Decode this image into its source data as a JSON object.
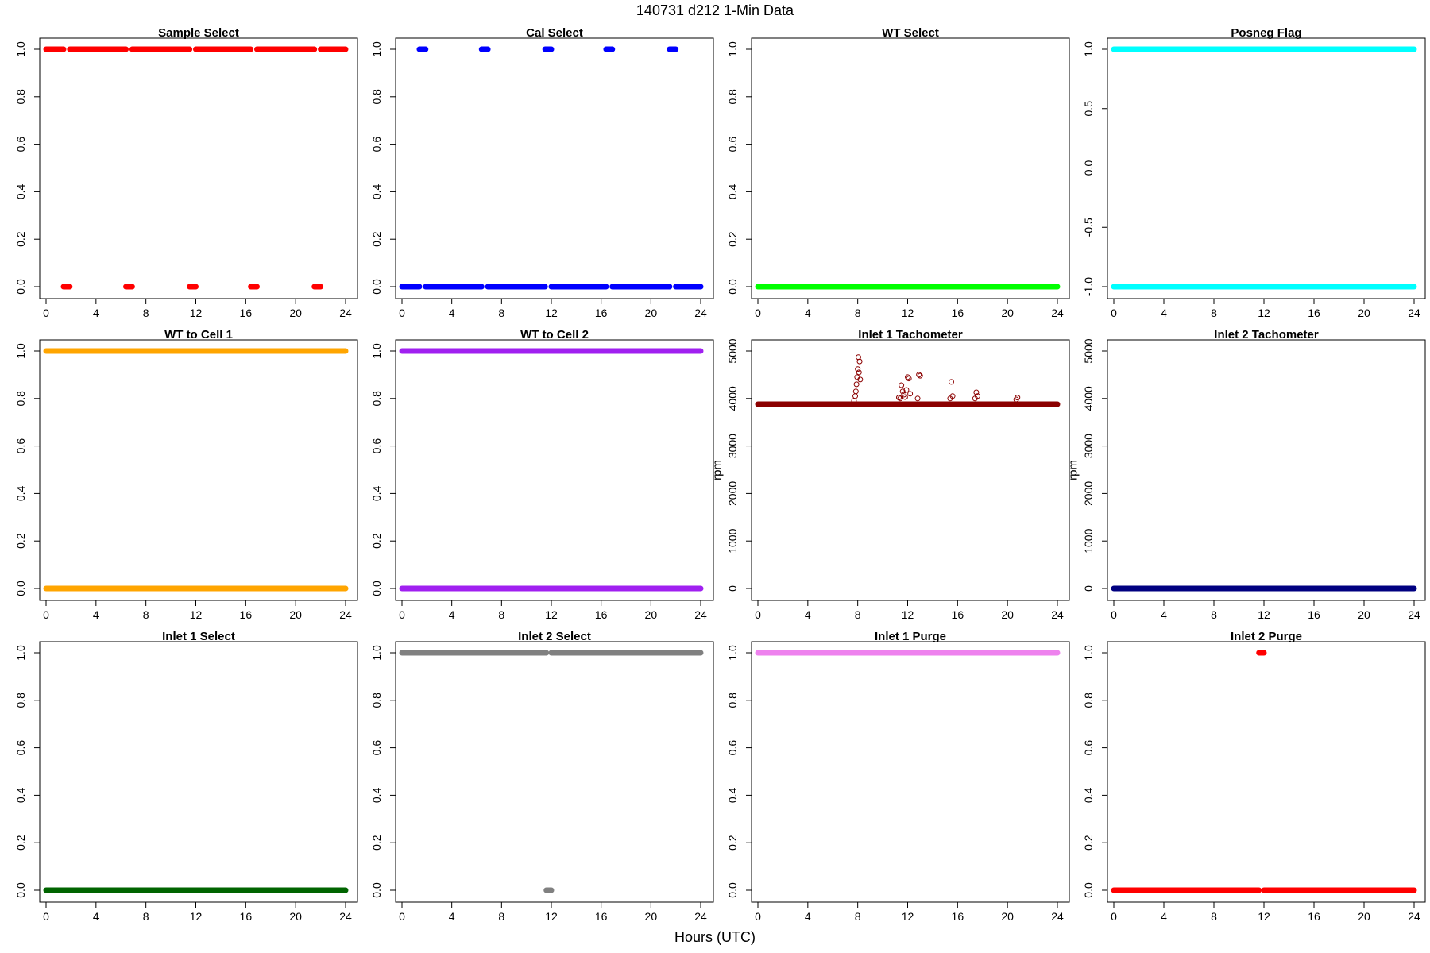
{
  "figure": {
    "title": "140731   d212   1-Min Data",
    "xlabel": "Hours (UTC)"
  },
  "chart_data": [
    {
      "type": "scatter",
      "title": "Sample Select",
      "color": "#FF0000",
      "xlim": [
        0,
        24
      ],
      "ylim": [
        0,
        1
      ],
      "xticks": [
        0,
        4,
        8,
        12,
        16,
        20,
        24
      ],
      "yticks": [
        0,
        0.2,
        0.4,
        0.6,
        0.8,
        1
      ],
      "ytick_labels": [
        "0.0",
        "0.2",
        "0.4",
        "0.6",
        "0.8",
        "1.0"
      ],
      "ylabel": "",
      "segments": [
        {
          "y": 1,
          "from": 0,
          "to": 1.4
        },
        {
          "y": 0,
          "from": 1.4,
          "to": 1.9
        },
        {
          "y": 1,
          "from": 1.9,
          "to": 6.4
        },
        {
          "y": 0,
          "from": 6.4,
          "to": 6.9
        },
        {
          "y": 1,
          "from": 6.9,
          "to": 11.5
        },
        {
          "y": 0,
          "from": 11.5,
          "to": 12.0
        },
        {
          "y": 1,
          "from": 12.0,
          "to": 16.4
        },
        {
          "y": 0,
          "from": 16.4,
          "to": 16.9
        },
        {
          "y": 1,
          "from": 16.9,
          "to": 21.5
        },
        {
          "y": 0,
          "from": 21.5,
          "to": 22.0
        },
        {
          "y": 1,
          "from": 22.0,
          "to": 24
        }
      ]
    },
    {
      "type": "scatter",
      "title": "Cal Select",
      "color": "#0000FF",
      "xlim": [
        0,
        24
      ],
      "ylim": [
        0,
        1
      ],
      "xticks": [
        0,
        4,
        8,
        12,
        16,
        20,
        24
      ],
      "yticks": [
        0,
        0.2,
        0.4,
        0.6,
        0.8,
        1
      ],
      "ytick_labels": [
        "0.0",
        "0.2",
        "0.4",
        "0.6",
        "0.8",
        "1.0"
      ],
      "ylabel": "",
      "segments": [
        {
          "y": 0,
          "from": 0,
          "to": 1.4
        },
        {
          "y": 1,
          "from": 1.4,
          "to": 1.9
        },
        {
          "y": 0,
          "from": 1.9,
          "to": 6.4
        },
        {
          "y": 1,
          "from": 6.4,
          "to": 6.9
        },
        {
          "y": 0,
          "from": 6.9,
          "to": 11.5
        },
        {
          "y": 1,
          "from": 11.5,
          "to": 12.0
        },
        {
          "y": 0,
          "from": 12.0,
          "to": 16.4
        },
        {
          "y": 1,
          "from": 16.4,
          "to": 16.9
        },
        {
          "y": 0,
          "from": 16.9,
          "to": 21.5
        },
        {
          "y": 1,
          "from": 21.5,
          "to": 22.0
        },
        {
          "y": 0,
          "from": 22.0,
          "to": 24
        }
      ]
    },
    {
      "type": "scatter",
      "title": "WT Select",
      "color": "#00FF00",
      "xlim": [
        0,
        24
      ],
      "ylim": [
        0,
        1
      ],
      "xticks": [
        0,
        4,
        8,
        12,
        16,
        20,
        24
      ],
      "yticks": [
        0,
        0.2,
        0.4,
        0.6,
        0.8,
        1
      ],
      "ytick_labels": [
        "0.0",
        "0.2",
        "0.4",
        "0.6",
        "0.8",
        "1.0"
      ],
      "ylabel": "",
      "segments": [
        {
          "y": 0,
          "from": 0,
          "to": 24
        }
      ]
    },
    {
      "type": "scatter",
      "title": "Posneg Flag",
      "color": "#00FFFF",
      "xlim": [
        0,
        24
      ],
      "ylim": [
        -1,
        1
      ],
      "xticks": [
        0,
        4,
        8,
        12,
        16,
        20,
        24
      ],
      "yticks": [
        -1,
        -0.5,
        0,
        0.5,
        1
      ],
      "ytick_labels": [
        "-1.0",
        "-0.5",
        "0.0",
        "0.5",
        "1.0"
      ],
      "ylabel": "",
      "segments": [
        {
          "y": 1,
          "from": 0,
          "to": 24
        },
        {
          "y": -1,
          "from": 0,
          "to": 24
        }
      ]
    },
    {
      "type": "scatter",
      "title": "WT to Cell 1",
      "color": "#FFA500",
      "xlim": [
        0,
        24
      ],
      "ylim": [
        0,
        1
      ],
      "xticks": [
        0,
        4,
        8,
        12,
        16,
        20,
        24
      ],
      "yticks": [
        0,
        0.2,
        0.4,
        0.6,
        0.8,
        1
      ],
      "ytick_labels": [
        "0.0",
        "0.2",
        "0.4",
        "0.6",
        "0.8",
        "1.0"
      ],
      "ylabel": "",
      "segments": [
        {
          "y": 1,
          "from": 0,
          "to": 24
        },
        {
          "y": 0,
          "from": 0,
          "to": 24
        }
      ]
    },
    {
      "type": "scatter",
      "title": "WT to Cell 2",
      "color": "#A020F0",
      "xlim": [
        0,
        24
      ],
      "ylim": [
        0,
        1
      ],
      "xticks": [
        0,
        4,
        8,
        12,
        16,
        20,
        24
      ],
      "yticks": [
        0,
        0.2,
        0.4,
        0.6,
        0.8,
        1
      ],
      "ytick_labels": [
        "0.0",
        "0.2",
        "0.4",
        "0.6",
        "0.8",
        "1.0"
      ],
      "ylabel": "",
      "segments": [
        {
          "y": 1,
          "from": 0,
          "to": 24
        },
        {
          "y": 0,
          "from": 0,
          "to": 24
        }
      ]
    },
    {
      "type": "scatter",
      "title": "Inlet 1 Tachometer",
      "color": "#8B0000",
      "xlim": [
        0,
        24
      ],
      "ylim": [
        0,
        5000
      ],
      "xticks": [
        0,
        4,
        8,
        12,
        16,
        20,
        24
      ],
      "yticks": [
        0,
        1000,
        2000,
        3000,
        4000,
        5000
      ],
      "ytick_labels": [
        "0",
        "1000",
        "2000",
        "3000",
        "4000",
        "5000"
      ],
      "ylabel": "rpm",
      "segments": [
        {
          "y": 3880,
          "from": 0,
          "to": 24
        }
      ],
      "points": [
        [
          7.7,
          3950
        ],
        [
          7.8,
          4050
        ],
        [
          7.9,
          4300
        ],
        [
          7.95,
          4450
        ],
        [
          8.0,
          4620
        ],
        [
          8.05,
          4870
        ],
        [
          8.1,
          4550
        ],
        [
          8.15,
          4780
        ],
        [
          7.85,
          4150
        ],
        [
          8.2,
          4400
        ],
        [
          11.4,
          4000
        ],
        [
          11.5,
          4280
        ],
        [
          11.6,
          4150
        ],
        [
          11.7,
          4080
        ],
        [
          11.8,
          4030
        ],
        [
          11.9,
          4180
        ],
        [
          12.0,
          4450
        ],
        [
          12.1,
          4420
        ],
        [
          12.2,
          4100
        ],
        [
          11.3,
          4020
        ],
        [
          12.9,
          4500
        ],
        [
          13.0,
          4480
        ],
        [
          12.8,
          4000
        ],
        [
          15.5,
          4350
        ],
        [
          15.6,
          4050
        ],
        [
          15.4,
          4000
        ],
        [
          17.5,
          4130
        ],
        [
          17.6,
          4050
        ],
        [
          17.4,
          4000
        ],
        [
          20.8,
          4020
        ],
        [
          20.7,
          3980
        ]
      ]
    },
    {
      "type": "scatter",
      "title": "Inlet 2 Tachometer",
      "color": "#000080",
      "xlim": [
        0,
        24
      ],
      "ylim": [
        0,
        5000
      ],
      "xticks": [
        0,
        4,
        8,
        12,
        16,
        20,
        24
      ],
      "yticks": [
        0,
        1000,
        2000,
        3000,
        4000,
        5000
      ],
      "ytick_labels": [
        "0",
        "1000",
        "2000",
        "3000",
        "4000",
        "5000"
      ],
      "ylabel": "rpm",
      "segments": [
        {
          "y": 0,
          "from": 0,
          "to": 24
        }
      ]
    },
    {
      "type": "scatter",
      "title": "Inlet 1 Select",
      "color": "#006400",
      "xlim": [
        0,
        24
      ],
      "ylim": [
        0,
        1
      ],
      "xticks": [
        0,
        4,
        8,
        12,
        16,
        20,
        24
      ],
      "yticks": [
        0,
        0.2,
        0.4,
        0.6,
        0.8,
        1
      ],
      "ytick_labels": [
        "0.0",
        "0.2",
        "0.4",
        "0.6",
        "0.8",
        "1.0"
      ],
      "ylabel": "",
      "segments": [
        {
          "y": 0,
          "from": 0,
          "to": 24
        }
      ]
    },
    {
      "type": "scatter",
      "title": "Inlet 2 Select",
      "color": "#808080",
      "xlim": [
        0,
        24
      ],
      "ylim": [
        0,
        1
      ],
      "xticks": [
        0,
        4,
        8,
        12,
        16,
        20,
        24
      ],
      "yticks": [
        0,
        0.2,
        0.4,
        0.6,
        0.8,
        1
      ],
      "ytick_labels": [
        "0.0",
        "0.2",
        "0.4",
        "0.6",
        "0.8",
        "1.0"
      ],
      "ylabel": "",
      "segments": [
        {
          "y": 1,
          "from": 0,
          "to": 11.6
        },
        {
          "y": 0,
          "from": 11.6,
          "to": 12.0
        },
        {
          "y": 1,
          "from": 12.0,
          "to": 24
        }
      ]
    },
    {
      "type": "scatter",
      "title": "Inlet 1 Purge",
      "color": "#EE82EE",
      "xlim": [
        0,
        24
      ],
      "ylim": [
        0,
        1
      ],
      "xticks": [
        0,
        4,
        8,
        12,
        16,
        20,
        24
      ],
      "yticks": [
        0,
        0.2,
        0.4,
        0.6,
        0.8,
        1
      ],
      "ytick_labels": [
        "0.0",
        "0.2",
        "0.4",
        "0.6",
        "0.8",
        "1.0"
      ],
      "ylabel": "",
      "segments": [
        {
          "y": 1,
          "from": 0,
          "to": 24
        }
      ]
    },
    {
      "type": "scatter",
      "title": "Inlet 2 Purge",
      "color": "#FF0000",
      "xlim": [
        0,
        24
      ],
      "ylim": [
        0,
        1
      ],
      "xticks": [
        0,
        4,
        8,
        12,
        16,
        20,
        24
      ],
      "yticks": [
        0,
        0.2,
        0.4,
        0.6,
        0.8,
        1
      ],
      "ytick_labels": [
        "0.0",
        "0.2",
        "0.4",
        "0.6",
        "0.8",
        "1.0"
      ],
      "ylabel": "",
      "segments": [
        {
          "y": 0,
          "from": 0,
          "to": 11.6
        },
        {
          "y": 1,
          "from": 11.6,
          "to": 12.0
        },
        {
          "y": 0,
          "from": 12.0,
          "to": 24
        }
      ]
    }
  ]
}
